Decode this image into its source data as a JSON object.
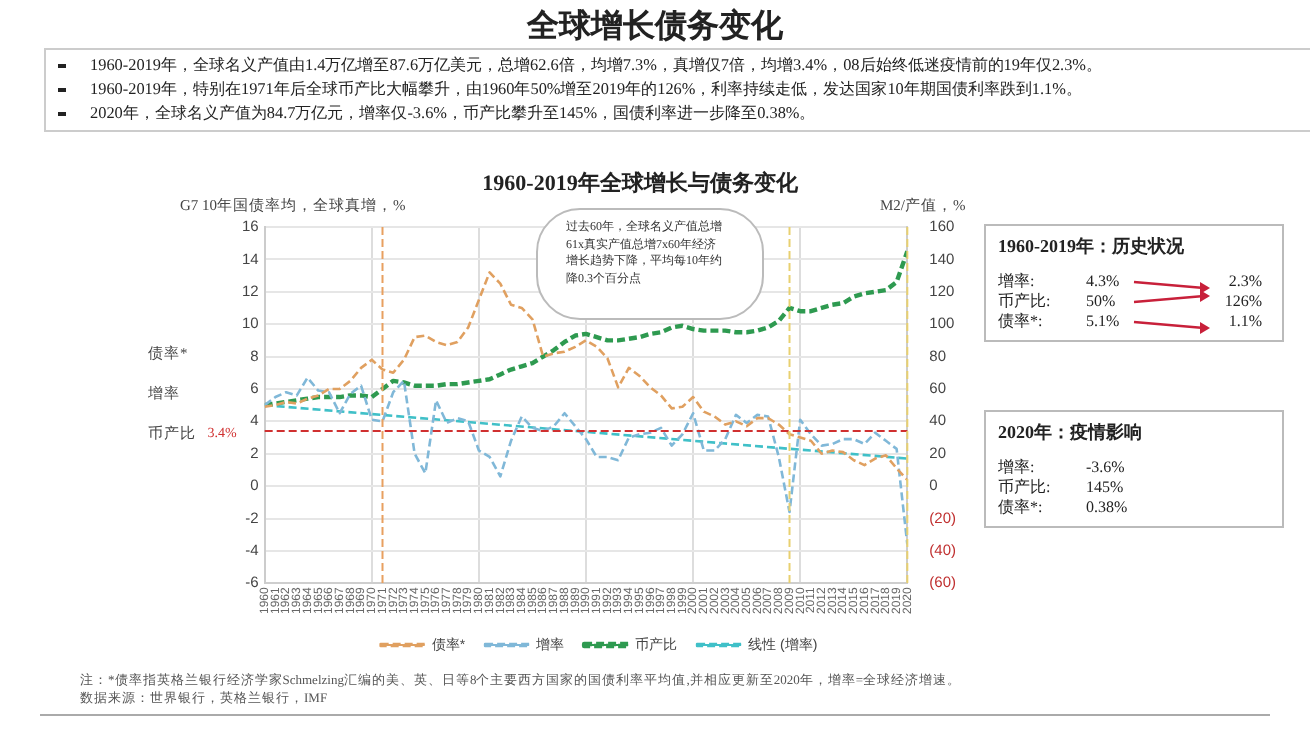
{
  "chart_data": {
    "type": "line",
    "title": "全球增长债务变化",
    "subtitle": "1960-2019年全球增长与债务变化",
    "ylabel": "G7 10年国债率均，全球真增，%",
    "y2label": "M2/产值，%",
    "x": [
      1960,
      1961,
      1962,
      1963,
      1964,
      1965,
      1966,
      1967,
      1968,
      1969,
      1970,
      1971,
      1972,
      1973,
      1974,
      1975,
      1976,
      1977,
      1978,
      1979,
      1980,
      1981,
      1982,
      1983,
      1984,
      1985,
      1986,
      1987,
      1988,
      1989,
      1990,
      1991,
      1992,
      1993,
      1994,
      1995,
      1996,
      1997,
      1998,
      1999,
      2000,
      2001,
      2002,
      2003,
      2004,
      2005,
      2006,
      2007,
      2008,
      2009,
      2010,
      2011,
      2012,
      2013,
      2014,
      2015,
      2016,
      2017,
      2018,
      2019,
      2020
    ],
    "xlim": [
      1960,
      2020
    ],
    "xticks": [
      1960,
      1961,
      1962,
      1963,
      1964,
      1965,
      1966,
      1967,
      1968,
      1969,
      1970,
      1971,
      1972,
      1973,
      1974,
      1975,
      1976,
      1977,
      1978,
      1979,
      1980,
      1981,
      1982,
      1983,
      1984,
      1985,
      1986,
      1987,
      1988,
      1989,
      1990,
      1991,
      1992,
      1993,
      1994,
      1995,
      1996,
      1997,
      1998,
      1999,
      2000,
      2001,
      2002,
      2003,
      2004,
      2005,
      2006,
      2007,
      2008,
      2009,
      2010,
      2011,
      2012,
      2013,
      2014,
      2015,
      2016,
      2017,
      2018,
      2019,
      2020
    ],
    "series": [
      {
        "name": "债率*",
        "color": "#e0a060",
        "values": [
          4.9,
          5.0,
          5.2,
          5.1,
          5.4,
          5.6,
          6.0,
          6.0,
          6.5,
          7.3,
          7.8,
          7.2,
          7.0,
          7.8,
          9.2,
          9.3,
          8.9,
          8.7,
          8.9,
          9.8,
          11.5,
          13.2,
          12.5,
          11.2,
          11.0,
          10.3,
          8.0,
          8.2,
          8.3,
          8.6,
          9.0,
          8.6,
          7.9,
          6.1,
          7.3,
          6.8,
          6.1,
          5.6,
          4.8,
          4.9,
          5.5,
          4.6,
          4.3,
          3.8,
          4.0,
          3.7,
          4.2,
          4.2,
          3.8,
          3.2,
          3.0,
          2.8,
          2.0,
          2.2,
          2.1,
          1.6,
          1.3,
          1.7,
          1.9,
          1.1,
          0.38
        ]
      },
      {
        "name": "增率",
        "color": "#80b8d8",
        "values": [
          5.0,
          5.5,
          5.8,
          5.6,
          6.7,
          5.9,
          5.8,
          4.5,
          5.7,
          6.2,
          4.1,
          4.0,
          5.8,
          6.5,
          2.0,
          0.8,
          5.3,
          3.9,
          4.2,
          4.0,
          2.2,
          1.8,
          0.6,
          2.8,
          4.3,
          3.6,
          3.4,
          3.7,
          4.5,
          3.7,
          2.9,
          1.8,
          1.8,
          1.6,
          3.0,
          3.2,
          3.3,
          3.6,
          2.5,
          3.2,
          4.5,
          2.2,
          2.2,
          2.9,
          4.4,
          3.9,
          4.4,
          4.3,
          1.8,
          -1.6,
          4.1,
          3.2,
          2.5,
          2.6,
          2.9,
          2.9,
          2.6,
          3.3,
          2.8,
          2.3,
          -3.6
        ]
      },
      {
        "name": "币产比",
        "color": "#2e9a50",
        "axis": "y2",
        "values": [
          50,
          51,
          52,
          53,
          54,
          55,
          55,
          55,
          56,
          56,
          55,
          60,
          65,
          64,
          62,
          62,
          62,
          63,
          63,
          64,
          65,
          66,
          69,
          72,
          74,
          76,
          80,
          84,
          89,
          93,
          94,
          92,
          90,
          90,
          91,
          92,
          94,
          95,
          98,
          99,
          97,
          96,
          96,
          96,
          95,
          95,
          96,
          98,
          102,
          110,
          108,
          108,
          110,
          112,
          113,
          117,
          119,
          120,
          121,
          126,
          145
        ]
      },
      {
        "name": "线性 (增率)",
        "color": "#40c0c8",
        "type": "line",
        "x": [
          1960,
          2020
        ],
        "values": [
          5.0,
          1.7
        ]
      }
    ],
    "ylim": [
      -6,
      16
    ],
    "yticks": [
      -6,
      -4,
      -2,
      0,
      2,
      4,
      6,
      8,
      10,
      12,
      14,
      16
    ],
    "y2lim": [
      -60,
      160
    ],
    "y2ticks": [
      {
        "value": -60,
        "label": "(60)"
      },
      {
        "value": -40,
        "label": "(40)"
      },
      {
        "value": -20,
        "label": "(20)"
      },
      0,
      20,
      40,
      60,
      80,
      100,
      120,
      140,
      160
    ],
    "ref_lines": [
      {
        "axis": "y",
        "value": 3.4,
        "label": "3.4%",
        "color": "#d03030",
        "line_style": "dashed"
      },
      {
        "axis": "x",
        "value": 1971,
        "color": "#e8a060",
        "line_style": "dashed"
      },
      {
        "axis": "x",
        "value": 2009,
        "color": "#e8d070",
        "line_style": "dashed"
      },
      {
        "axis": "x",
        "value": 2020,
        "color": "#e8d070",
        "line_style": "dashed"
      }
    ],
    "grid": true,
    "legend": "bottom",
    "marker": "none",
    "line_style": "dashed",
    "annotations": [
      "1960-2019年，全球名义产值由1.4万亿增至87.6万亿美元，总增62.6倍，均增7.3%，真增仅7倍，均增3.4%，08后始终低迷疫情前的19年仅2.3%。",
      "1960-2019年，特别在1971年后全球币产比大幅攀升，由1960年50%增至2019年的126%，利率持续走低，发达国家10年期国债利率跌到1.1%。",
      "2020年，全球名义产值为84.7万亿元，增率仅-3.6%，币产比攀升至145%，国债利率进一步降至0.38%。",
      "过去60年，全球名义产值总增61x真实产值总增7x60年经济增长趋势下降，平均每10年约降0.3个百分点",
      "1960-2019年：历史状况",
      "增率:",
      "4.3%",
      "2.3%",
      "币产比:",
      "50%",
      "126%",
      "债率*:",
      "5.1%",
      "1.1%",
      "2020年：疫情影响",
      "增率:",
      "-3.6%",
      "币产比:",
      "145%",
      "债率*:",
      "0.38%",
      "注：*债率指英格兰银行经济学家Schmelzing汇编的美、英、日等8个主要西方国家的国债利率平均值,并相应更新至2020年，增率=全球经济增速。",
      "数据来源：世界银行，英格兰银行，IMF"
    ]
  }
}
